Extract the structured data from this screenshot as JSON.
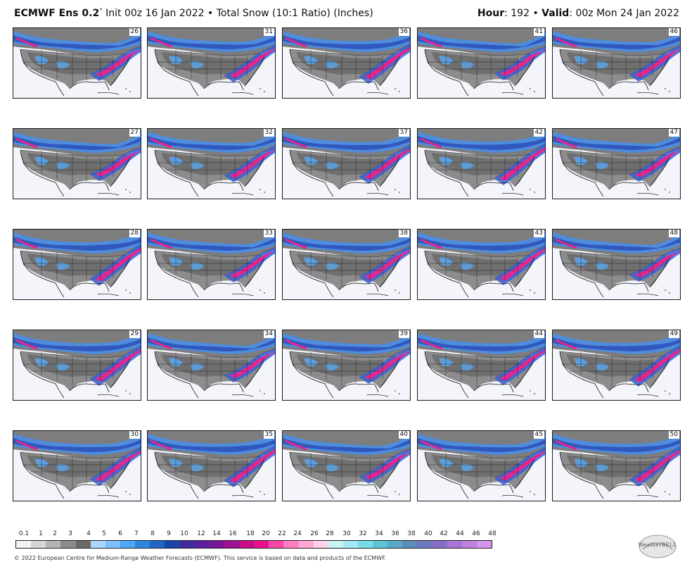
{
  "header": {
    "model": "ECMWF Ens 0.2",
    "degree": "°",
    "init": "Init 00z 16 Jan 2022",
    "bullet": "•",
    "product": "Total Snow (10:1 Ratio) (Inches)",
    "hour_label": "Hour",
    "hour_value": ": 192",
    "valid_label": "Valid",
    "valid_value": ": 00z Mon 24 Jan 2022"
  },
  "members": [
    [
      "26",
      "31",
      "36",
      "41",
      "46"
    ],
    [
      "27",
      "32",
      "37",
      "42",
      "47"
    ],
    [
      "28",
      "33",
      "38",
      "43",
      "48"
    ],
    [
      "29",
      "34",
      "39",
      "44",
      "49"
    ],
    [
      "30",
      "35",
      "40",
      "45",
      "50"
    ]
  ],
  "legend": {
    "ticks": [
      "0.1",
      "1",
      "2",
      "3",
      "4",
      "5",
      "6",
      "7",
      "8",
      "9",
      "10",
      "12",
      "14",
      "16",
      "18",
      "20",
      "22",
      "24",
      "26",
      "28",
      "30",
      "32",
      "34",
      "36",
      "38",
      "40",
      "42",
      "44",
      "46",
      "48"
    ],
    "colors": [
      "#f2f2f2",
      "#d6d6d6",
      "#b4b4b4",
      "#8c8c8c",
      "#6a6a6a",
      "#a8d8ff",
      "#7cc0ff",
      "#4fa6f2",
      "#2e86e0",
      "#1f64c8",
      "#1a44a8",
      "#3f2aa0",
      "#5a1f9c",
      "#7a1796",
      "#9e1290",
      "#c80c8a",
      "#e8108e",
      "#f548a6",
      "#ff7cbe",
      "#ffa8d2",
      "#ffd2e8",
      "#c8f4f8",
      "#a0ecf4",
      "#78dce8",
      "#5cc4d8",
      "#56a8c8",
      "#5a8cbc",
      "#6e78c0",
      "#8a6cc8",
      "#a874d4",
      "#c080e0",
      "#d494ec"
    ]
  },
  "logo": {
    "text": "WeatherBELL"
  },
  "footer": {
    "text": "© 2022 European Centre for Medium-Range Weather Forecasts (ECMWF). This service is based on data and products of the ECMWF."
  }
}
